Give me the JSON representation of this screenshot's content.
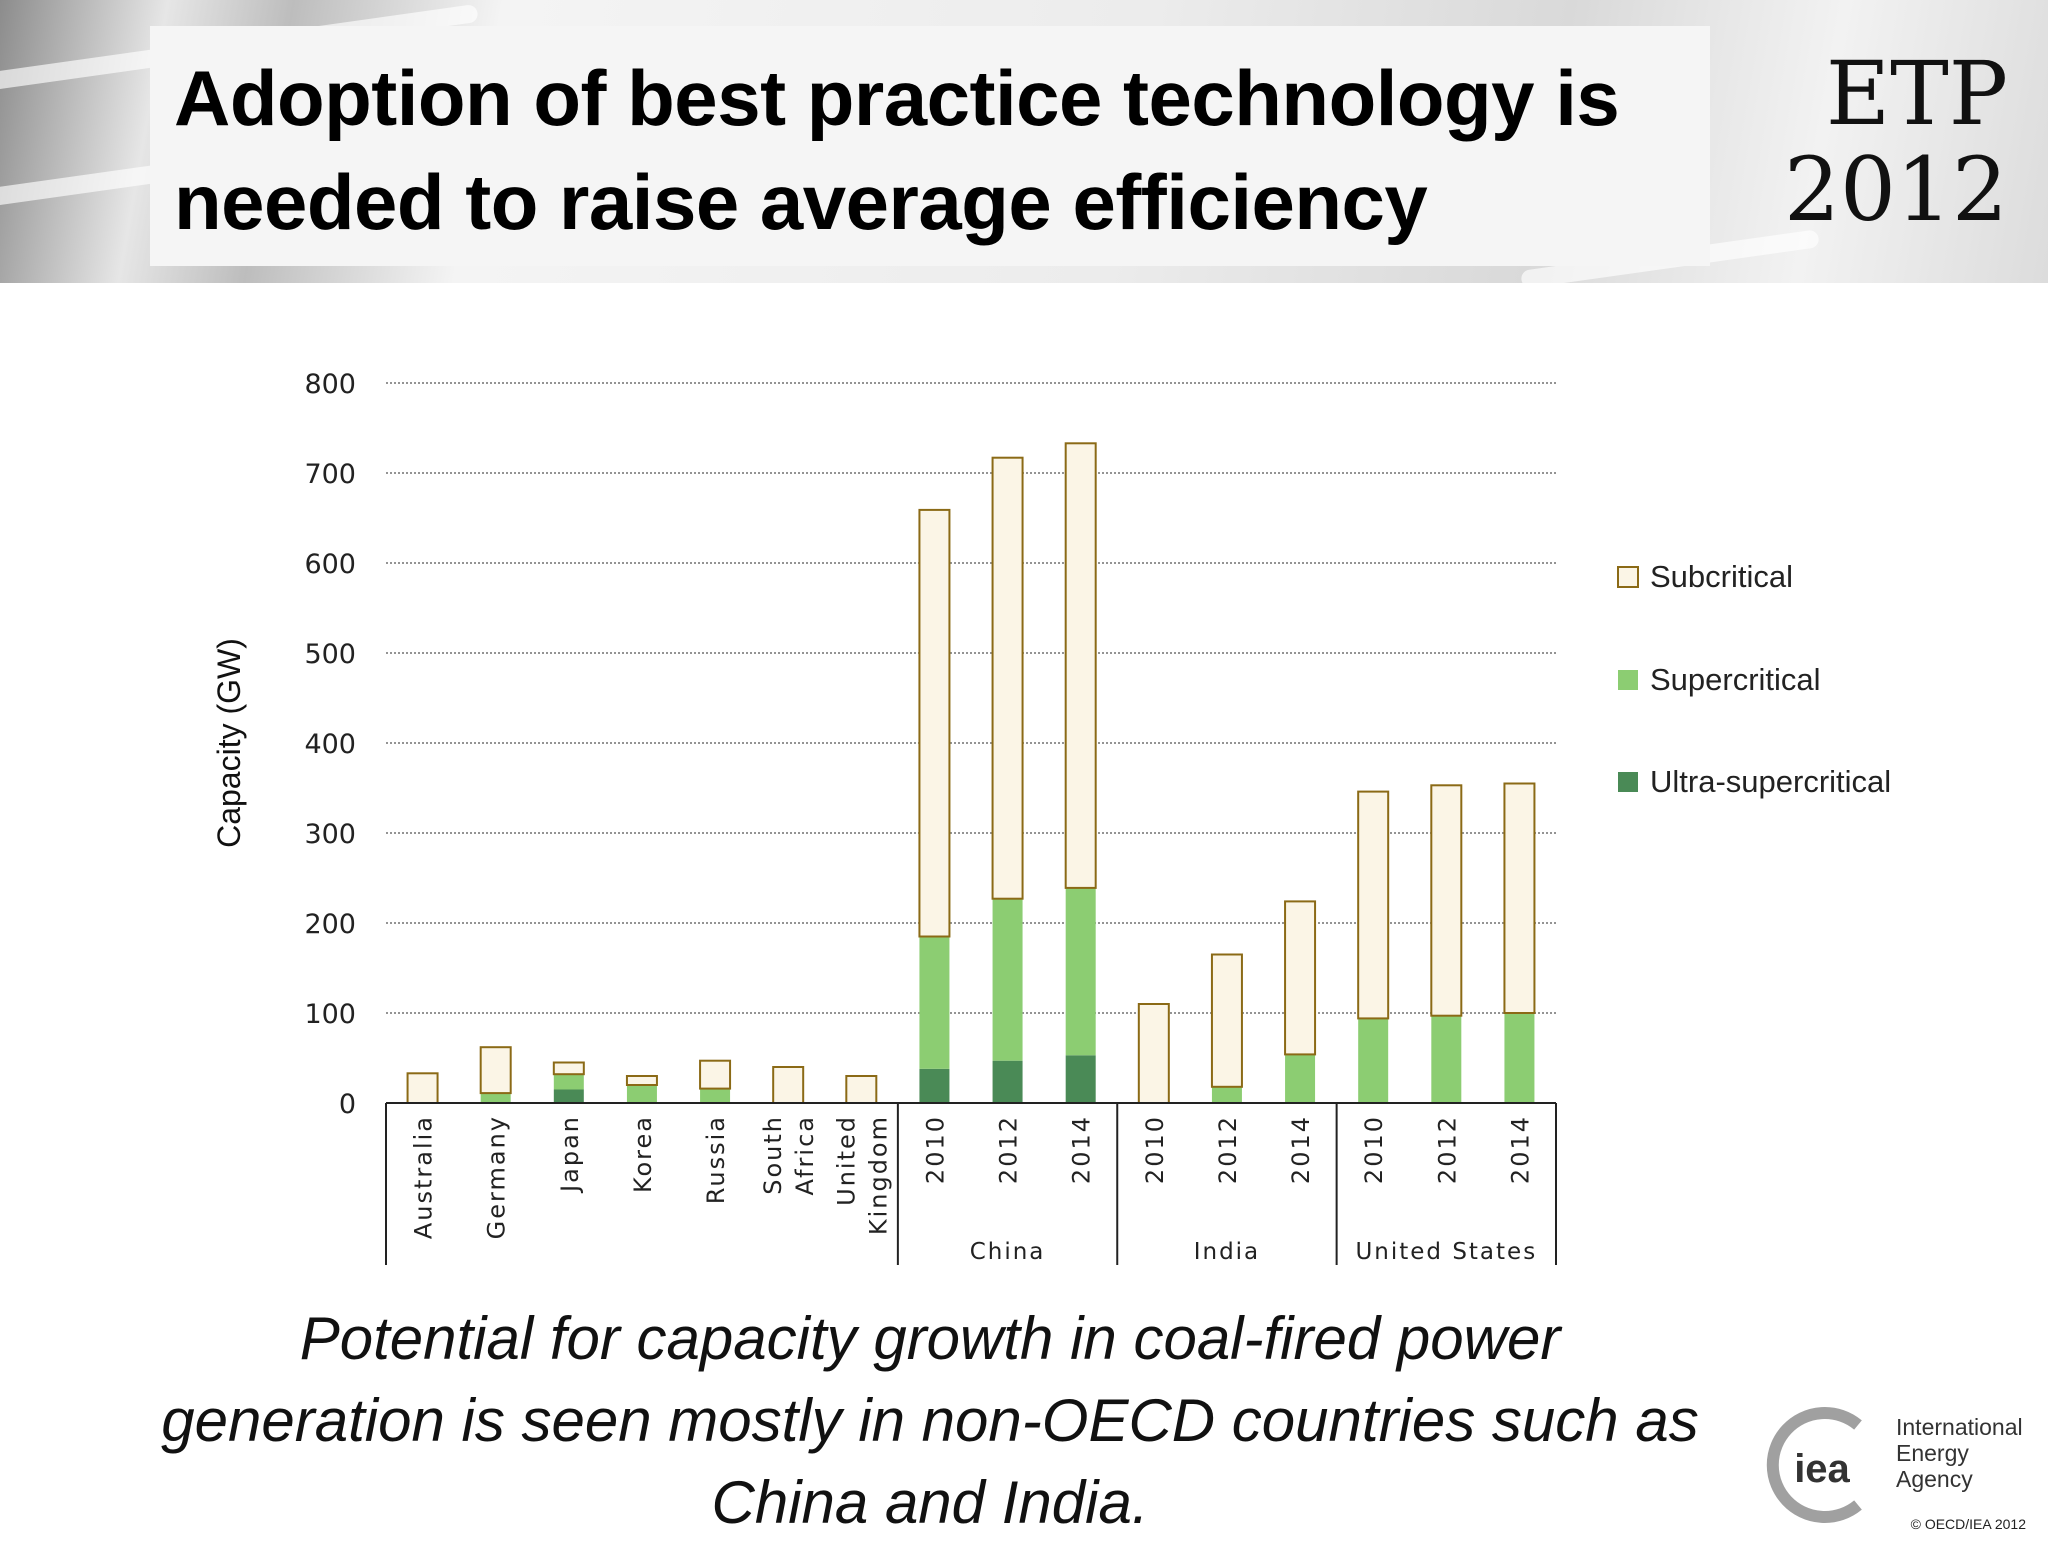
{
  "slide": {
    "title_line1": "Adoption of best practice technology is",
    "title_line2": "needed to raise average efficiency",
    "logo_line1": "ETP",
    "logo_line2": "2012",
    "caption_line1": "Potential for capacity growth in coal-fired power",
    "caption_line2": "generation is seen mostly in non-OECD countries such as",
    "caption_line3": "China and India.",
    "iea_logo_text": "iea",
    "iea_name_line1": "International",
    "iea_name_line2": "Energy Agency",
    "copyright": "© OECD/IEA 2012"
  },
  "chart_data": {
    "type": "bar",
    "stacked": true,
    "ylabel": "Capacity (GW)",
    "ylim": [
      0,
      800
    ],
    "yticks": [
      0,
      100,
      200,
      300,
      400,
      500,
      600,
      700,
      800
    ],
    "grid": true,
    "legend_position": "right",
    "categories": [
      {
        "label": "Australia",
        "group": ""
      },
      {
        "label": "Germany",
        "group": ""
      },
      {
        "label": "Japan",
        "group": ""
      },
      {
        "label": "Korea",
        "group": ""
      },
      {
        "label": "Russia",
        "group": ""
      },
      {
        "label": "South Africa",
        "group": ""
      },
      {
        "label": "United Kingdom",
        "group": ""
      },
      {
        "label": "2010",
        "group": "China"
      },
      {
        "label": "2012",
        "group": "China"
      },
      {
        "label": "2014",
        "group": "China"
      },
      {
        "label": "2010",
        "group": "India"
      },
      {
        "label": "2012",
        "group": "India"
      },
      {
        "label": "2014",
        "group": "India"
      },
      {
        "label": "2010",
        "group": "United States"
      },
      {
        "label": "2012",
        "group": "United States"
      },
      {
        "label": "2014",
        "group": "United States"
      }
    ],
    "groups": [
      "China",
      "India",
      "United States"
    ],
    "series": [
      {
        "name": "Ultra-supercritical",
        "color": "#4a8a56",
        "values": [
          0,
          0,
          15,
          0,
          0,
          0,
          0,
          38,
          47,
          53,
          0,
          0,
          0,
          0,
          0,
          0
        ]
      },
      {
        "name": "Supercritical",
        "color": "#8ccd72",
        "values": [
          0,
          11,
          17,
          20,
          16,
          0,
          0,
          147,
          180,
          186,
          0,
          18,
          54,
          94,
          97,
          100
        ]
      },
      {
        "name": "Subcritical",
        "color": "#fbf5e6",
        "values": [
          33,
          51,
          13,
          10,
          31,
          40,
          30,
          474,
          490,
          494,
          110,
          147,
          170,
          252,
          256,
          255
        ]
      }
    ],
    "legend_order": [
      "Subcritical",
      "Supercritical",
      "Ultra-supercritical"
    ]
  }
}
